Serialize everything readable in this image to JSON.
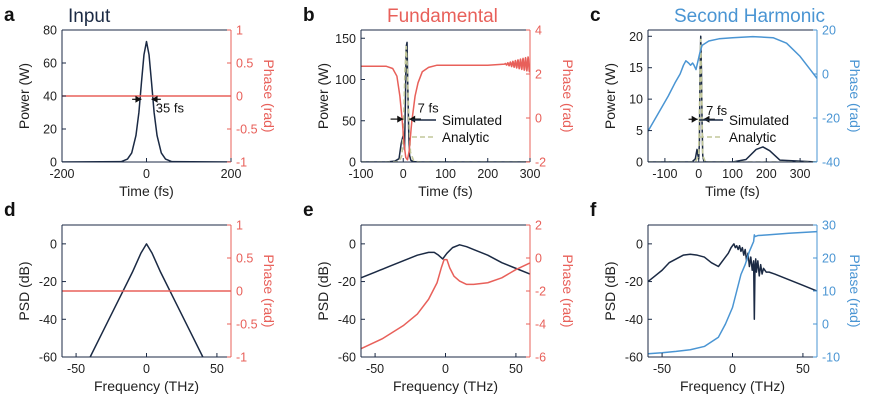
{
  "colors": {
    "dark": "#1b2a44",
    "red": "#e8605a",
    "blue": "#4a95d3",
    "analytic": "#c2c79a"
  },
  "chart_data": [
    {
      "id": "a",
      "letter": "a",
      "title": "Input",
      "title_color": "#1b2a44",
      "type": "line",
      "xlabel": "Time (fs)",
      "ylabel": "Power (W)",
      "y2label": "Phase (rad)",
      "xlim": [
        -200,
        200
      ],
      "ylim": [
        0,
        80
      ],
      "y2lim": [
        -1,
        1
      ],
      "xticks": [
        -200,
        0,
        200
      ],
      "yticks": [
        0,
        20,
        40,
        60,
        80
      ],
      "y2ticks": [
        -1,
        -0.5,
        0,
        0.5,
        1
      ],
      "y2ticklabels": [
        "-1",
        "-0.5",
        "0",
        "0.5",
        "1"
      ],
      "series": [
        {
          "axis": "y",
          "color": "#1b2a44",
          "x": [
            -200,
            -60,
            -45,
            -35,
            -25,
            -18,
            -12,
            -6,
            0,
            6,
            12,
            18,
            25,
            35,
            45,
            60,
            200
          ],
          "y": [
            0,
            0.2,
            1.8,
            5.5,
            16,
            30,
            48,
            65,
            73,
            65,
            48,
            30,
            16,
            5.5,
            1.8,
            0.2,
            0
          ]
        },
        {
          "axis": "y2",
          "color": "#e8605a",
          "x": [
            -200,
            200
          ],
          "y": [
            0,
            0
          ]
        }
      ],
      "annotations": [
        {
          "text": "35 fs",
          "x": 22,
          "y": 30
        }
      ],
      "arrows": [
        {
          "x1": -34,
          "x2": -12,
          "y": 38
        },
        {
          "x1": 34,
          "x2": 12,
          "y": 38
        }
      ]
    },
    {
      "id": "b",
      "letter": "b",
      "title": "Fundamental",
      "title_color": "#e8605a",
      "type": "line",
      "xlabel": "Time (fs)",
      "ylabel": "Power (W)",
      "y2label": "Phase (rad)",
      "xlim": [
        -100,
        300
      ],
      "ylim": [
        0,
        160
      ],
      "y2lim": [
        -2,
        4
      ],
      "xticks": [
        -100,
        0,
        100,
        200,
        300
      ],
      "yticks": [
        0,
        50,
        100,
        150
      ],
      "y2ticks": [
        -2,
        0,
        2,
        4
      ],
      "y2ticklabels": [
        "-2",
        "0",
        "2",
        "4"
      ],
      "legend": [
        "Simulated",
        "Analytic"
      ],
      "series": [
        {
          "axis": "y",
          "color": "#1b2a44",
          "x": [
            -100,
            -40,
            -20,
            -10,
            -5,
            0,
            3,
            5,
            7,
            9,
            11,
            13,
            15,
            18,
            25,
            40,
            100,
            300
          ],
          "y": [
            0,
            0,
            1,
            4,
            22,
            33,
            15,
            70,
            140,
            145,
            85,
            35,
            8,
            2,
            0.5,
            0,
            0,
            0
          ]
        },
        {
          "axis": "y",
          "color": "#c2c79a",
          "dashed": true,
          "x": [
            -100,
            -40,
            -10,
            -3,
            1,
            4,
            7,
            10,
            13,
            17,
            25,
            40,
            100,
            300
          ],
          "y": [
            0,
            0,
            0.5,
            8,
            50,
            110,
            140,
            110,
            55,
            12,
            1,
            0,
            0,
            0
          ]
        },
        {
          "axis": "y2",
          "color": "#e8605a",
          "x": [
            -100,
            -40,
            -25,
            -15,
            -8,
            -2,
            2,
            6,
            10,
            14,
            20,
            28,
            35,
            45,
            60,
            80,
            120,
            200,
            240
          ],
          "y": [
            2.35,
            2.35,
            2.25,
            1.9,
            1.0,
            -0.2,
            -1.2,
            -1.8,
            -1.9,
            -1.5,
            -0.2,
            1.0,
            1.6,
            2.1,
            2.3,
            2.4,
            2.4,
            2.4,
            2.45
          ],
          "ripple": {
            "x_start": 240,
            "x_end": 300,
            "base": 2.45,
            "amp_start": 0.02,
            "amp_end": 0.35,
            "period": 6
          }
        }
      ],
      "annotations": [
        {
          "text": "7 fs",
          "x": 34,
          "y": 60
        }
      ],
      "arrows": [
        {
          "x1": -30,
          "x2": 0,
          "y": 52
        },
        {
          "x1": 42,
          "x2": 14,
          "y": 52
        }
      ]
    },
    {
      "id": "c",
      "letter": "c",
      "title": "Second Harmonic",
      "title_color": "#4a95d3",
      "type": "line",
      "xlabel": "Time (fs)",
      "ylabel": "Power (W)",
      "y2label": "Phase (rad)",
      "xlim": [
        -150,
        350
      ],
      "ylim": [
        0,
        21
      ],
      "y2lim": [
        -40,
        20
      ],
      "xticks": [
        -100,
        0,
        100,
        200,
        300
      ],
      "yticks": [
        0,
        5,
        10,
        15,
        20
      ],
      "y2ticks": [
        -40,
        -20,
        0,
        20
      ],
      "y2ticklabels": [
        "-40",
        "-20",
        "0",
        "20"
      ],
      "legend": [
        "Simulated",
        "Analytic"
      ],
      "series": [
        {
          "axis": "y",
          "color": "#1b2a44",
          "x": [
            -150,
            -20,
            -10,
            -5,
            -2,
            0,
            2,
            4,
            6,
            8,
            10,
            12,
            15,
            20,
            50,
            100,
            140,
            170,
            190,
            210,
            240,
            350
          ],
          "y": [
            0,
            0,
            0.5,
            2,
            1,
            0.5,
            3,
            14,
            20,
            15,
            6,
            1,
            0.2,
            0,
            0,
            0,
            0.4,
            2,
            2.4,
            1.8,
            0.3,
            0
          ]
        },
        {
          "axis": "y",
          "color": "#c2c79a",
          "dashed": true,
          "x": [
            -150,
            -10,
            0,
            3,
            6,
            9,
            12,
            20,
            350
          ],
          "y": [
            0,
            0,
            1,
            10,
            19.5,
            10,
            1,
            0,
            0
          ]
        },
        {
          "axis": "y2",
          "color": "#4a95d3",
          "x": [
            -150,
            -120,
            -90,
            -70,
            -55,
            -45,
            -38,
            -30,
            -24,
            -18,
            -14,
            -8,
            -2,
            4,
            10,
            30,
            60,
            100,
            160,
            220,
            260,
            300,
            330,
            350
          ],
          "y": [
            -26,
            -18,
            -10,
            -4,
            0,
            4,
            6,
            5,
            4,
            5,
            4,
            2,
            6,
            10,
            13,
            15,
            16,
            16.5,
            17,
            16.5,
            14,
            8,
            2,
            -2
          ]
        }
      ],
      "annotations": [
        {
          "text": "7 fs",
          "x": 22,
          "y": 7.5
        }
      ],
      "arrows": [
        {
          "x1": -30,
          "x2": -3,
          "y": 6.8
        },
        {
          "x1": 48,
          "x2": 14,
          "y": 6.8
        }
      ]
    },
    {
      "id": "d",
      "letter": "d",
      "title": "",
      "type": "line",
      "xlabel": "Frequency (THz)",
      "ylabel": "PSD (dB)",
      "y2label": "Phase (rad)",
      "xlim": [
        -60,
        60
      ],
      "ylim": [
        -60,
        10
      ],
      "y2lim": [
        -1,
        1
      ],
      "xticks": [
        -50,
        0,
        50
      ],
      "yticks": [
        -60,
        -40,
        -20,
        0
      ],
      "y2ticks": [
        -1,
        -0.5,
        0,
        0.5,
        1
      ],
      "y2ticklabels": [
        "-1",
        "-0.5",
        "0",
        "0.5",
        "1"
      ],
      "series": [
        {
          "axis": "y",
          "color": "#1b2a44",
          "x": [
            -40,
            -30,
            -20,
            -10,
            -4,
            0,
            4,
            10,
            20,
            30,
            40
          ],
          "y": [
            -60,
            -45,
            -30,
            -15,
            -5,
            0,
            -5,
            -15,
            -30,
            -45,
            -60
          ]
        },
        {
          "axis": "y2",
          "color": "#e8605a",
          "x": [
            -60,
            60
          ],
          "y": [
            0,
            0
          ]
        }
      ]
    },
    {
      "id": "e",
      "letter": "e",
      "title": "",
      "type": "line",
      "xlabel": "Frequency (THz)",
      "ylabel": "PSD (dB)",
      "y2label": "Phase (rad)",
      "xlim": [
        -60,
        60
      ],
      "ylim": [
        -60,
        10
      ],
      "y2lim": [
        -6,
        2
      ],
      "xticks": [
        -50,
        0,
        50
      ],
      "yticks": [
        -60,
        -40,
        -20,
        0
      ],
      "y2ticks": [
        -6,
        -4,
        -2,
        0,
        2
      ],
      "y2ticklabels": [
        "-6",
        "-4",
        "-2",
        "0",
        "2"
      ],
      "series": [
        {
          "axis": "y",
          "color": "#1b2a44",
          "x": [
            -60,
            -50,
            -40,
            -30,
            -20,
            -12,
            -8,
            -5,
            -2,
            1,
            5,
            10,
            15,
            20,
            30,
            40,
            50,
            60
          ],
          "y": [
            -18,
            -15,
            -12,
            -9,
            -6,
            -4.5,
            -4.5,
            -6,
            -8,
            -5,
            -2,
            -0.5,
            -1.5,
            -3,
            -6,
            -10,
            -13,
            -16
          ]
        },
        {
          "axis": "y2",
          "color": "#e8605a",
          "x": [
            -60,
            -45,
            -30,
            -20,
            -12,
            -6,
            -3,
            -1,
            1,
            3,
            6,
            10,
            15,
            20,
            30,
            40,
            50,
            60
          ],
          "y": [
            -5.5,
            -4.9,
            -4.1,
            -3.4,
            -2.5,
            -1.5,
            -0.6,
            -0.1,
            -0.1,
            -0.6,
            -1.1,
            -1.4,
            -1.6,
            -1.6,
            -1.5,
            -1.2,
            -0.7,
            -0.3
          ]
        }
      ]
    },
    {
      "id": "f",
      "letter": "f",
      "title": "",
      "type": "line",
      "xlabel": "Frequency (THz)",
      "ylabel": "PSD (dB)",
      "y2label": "Phase (rad)",
      "xlim": [
        -60,
        60
      ],
      "ylim": [
        -60,
        10
      ],
      "y2lim": [
        -10,
        30
      ],
      "xticks": [
        -50,
        0,
        50
      ],
      "yticks": [
        -60,
        -40,
        -20,
        0
      ],
      "y2ticks": [
        -10,
        0,
        10,
        20,
        30
      ],
      "y2ticklabels": [
        "-10",
        "0",
        "10",
        "20",
        "30"
      ],
      "series": [
        {
          "axis": "y",
          "color": "#1b2a44",
          "x": [
            -60,
            -55,
            -50,
            -45,
            -40,
            -35,
            -30,
            -25,
            -20,
            -15,
            -10,
            -6,
            -3,
            -1,
            1,
            2,
            3,
            4,
            5,
            6,
            7,
            8,
            9,
            10,
            11,
            12,
            13,
            14,
            15,
            15.5,
            16,
            16.5,
            17,
            18,
            19,
            20,
            21,
            22,
            24,
            26,
            30,
            40,
            50,
            60
          ],
          "y": [
            -20,
            -17,
            -14,
            -10,
            -8,
            -6,
            -5.5,
            -6,
            -7,
            -10,
            -12,
            -8,
            -5,
            -2,
            0,
            -2,
            -1,
            -3,
            -1,
            -4,
            -2,
            -6,
            -3,
            -9,
            -5,
            -12,
            -7,
            -14,
            -9,
            -40,
            -12,
            -8,
            -15,
            -9,
            -17,
            -11,
            -16,
            -13,
            -15,
            -15,
            -16,
            -19,
            -22,
            -25
          ]
        },
        {
          "axis": "y2",
          "color": "#4a95d3",
          "x": [
            -60,
            -50,
            -40,
            -30,
            -20,
            -10,
            -5,
            0,
            3,
            6,
            9,
            12,
            14,
            15,
            15.5,
            16,
            18,
            25,
            40,
            60
          ],
          "y": [
            -9,
            -8.7,
            -8.3,
            -7.8,
            -6.8,
            -4,
            0,
            5,
            10,
            15,
            18,
            22,
            24,
            25,
            27,
            26.5,
            26.8,
            27,
            27.5,
            28
          ]
        }
      ]
    }
  ]
}
